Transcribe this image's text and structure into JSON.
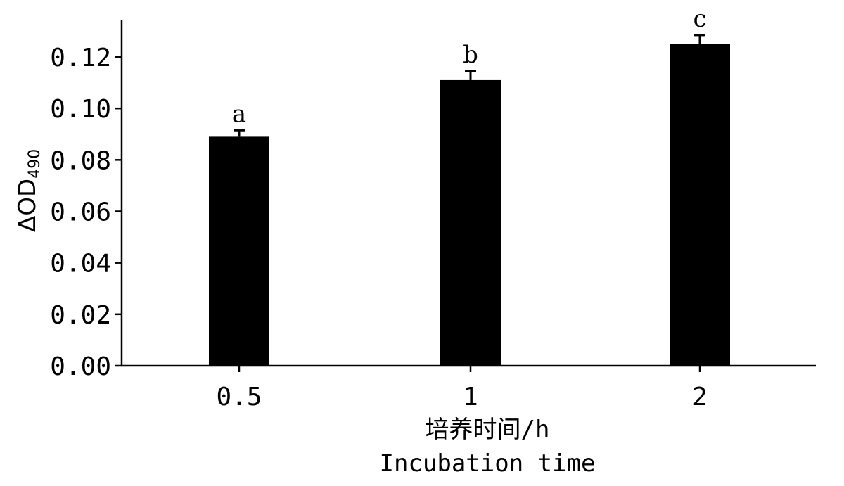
{
  "chart_data": {
    "type": "bar",
    "categories": [
      "0.5",
      "1",
      "2"
    ],
    "values": [
      0.089,
      0.111,
      0.125
    ],
    "errors": [
      0.0025,
      0.0035,
      0.0035
    ],
    "significance_labels": [
      "a",
      "b",
      "c"
    ],
    "ylabel": "ΔOD",
    "ylabel_subscript": "490",
    "xlabel": "培养时间/h",
    "xlabel_en": "Incubation time",
    "ylim": [
      0,
      0.135
    ],
    "yticks": [
      "0.00",
      "0.02",
      "0.04",
      "0.06",
      "0.08",
      "0.10",
      "0.12"
    ],
    "grid": false,
    "bar_color": "#000000"
  }
}
